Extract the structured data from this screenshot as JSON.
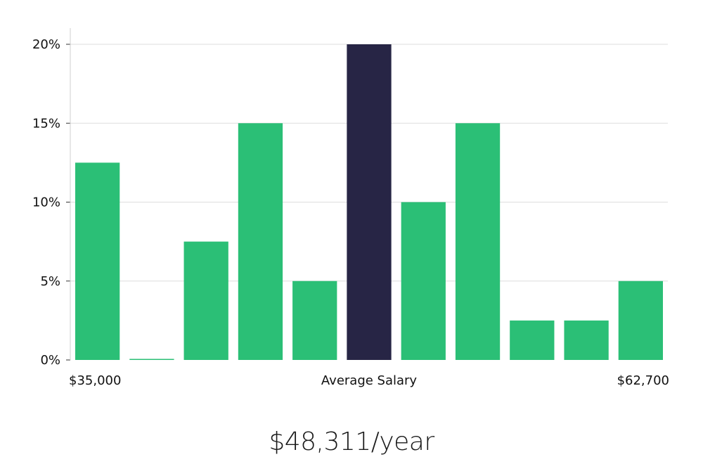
{
  "chart_data": {
    "type": "bar",
    "bins": 11,
    "values": [
      12.5,
      0,
      7.5,
      15,
      5,
      20,
      10,
      15,
      2.5,
      2.5,
      5
    ],
    "highlight_index": 5,
    "ylim": [
      0,
      20
    ],
    "yticks": [
      0,
      5,
      10,
      15,
      20
    ],
    "ytick_labels": [
      "0%",
      "5%",
      "10%",
      "15%",
      "20%"
    ],
    "x_min_label": "$35,000",
    "x_max_label": "$62,700",
    "xlabel": "Average Salary",
    "grid": true,
    "colors": {
      "bar": "#2bbf76",
      "highlight": "#272545",
      "grid": "#dddddd",
      "axis": "#cfcfcf"
    }
  },
  "summary": {
    "average_salary": "$48,311/year"
  }
}
